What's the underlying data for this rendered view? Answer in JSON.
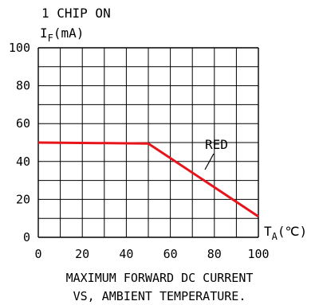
{
  "chart_data": {
    "type": "line",
    "title_line1": "1 CHIP ON",
    "ylabel_main": "I",
    "ylabel_sub": "F",
    "ylabel_unit": "(mA)",
    "xlabel_main": "T",
    "xlabel_sub": "A",
    "xlabel_unit": "(℃)",
    "x_ticks": [
      "0",
      "20",
      "40",
      "60",
      "80",
      "100"
    ],
    "y_ticks": [
      "0",
      "20",
      "40",
      "60",
      "80",
      "100"
    ],
    "xlim": [
      0,
      100
    ],
    "ylim": [
      0,
      100
    ],
    "grid": true,
    "series": [
      {
        "name": "RED",
        "color": "#e8141b",
        "x": [
          0,
          50,
          100
        ],
        "y": [
          50,
          49.5,
          11
        ]
      }
    ],
    "caption_line1": "MAXIMUM FORWARD DC CURRENT",
    "caption_line2": "VS, AMBIENT TEMPERATURE."
  }
}
